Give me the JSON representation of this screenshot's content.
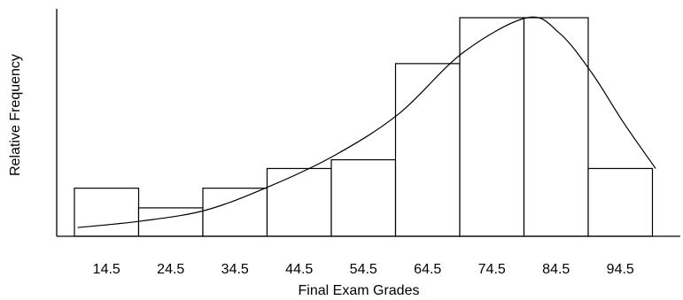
{
  "chart_data": {
    "type": "bar",
    "title": "",
    "xlabel": "Final Exam Grades",
    "ylabel": "Relative Frequency",
    "categories": [
      "14.5",
      "24.5",
      "34.5",
      "44.5",
      "54.5",
      "64.5",
      "74.5",
      "84.5",
      "94.5"
    ],
    "values": [
      0.22,
      0.13,
      0.22,
      0.31,
      0.35,
      0.79,
      1.0,
      1.0,
      0.31
    ],
    "ylim": [
      0,
      1.0
    ],
    "bar_color": "#ffffff",
    "edge_color": "#000000",
    "overlay_curve": {
      "type": "line",
      "x": [
        10,
        20,
        30,
        40,
        50,
        60,
        70,
        80,
        85,
        90,
        95,
        100
      ],
      "y": [
        0.04,
        0.07,
        0.12,
        0.23,
        0.37,
        0.56,
        0.84,
        1.0,
        0.93,
        0.75,
        0.52,
        0.31
      ]
    },
    "grid": false,
    "legend": "none"
  }
}
